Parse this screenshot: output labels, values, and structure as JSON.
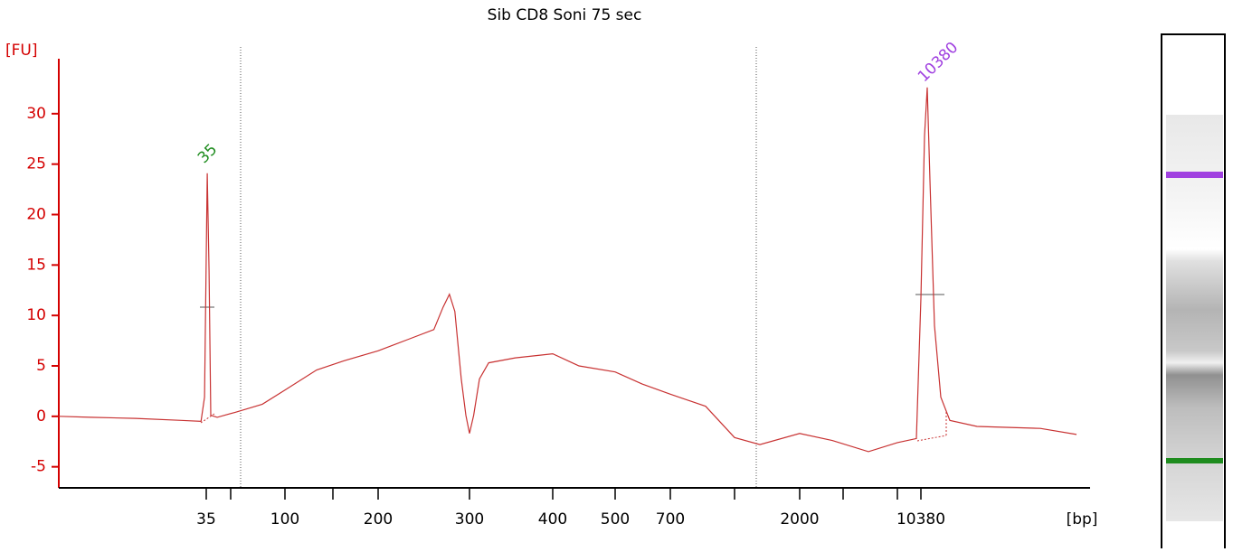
{
  "chart_data": {
    "type": "line",
    "title": "Sib CD8 Soni 75 sec",
    "y_label": "[FU]",
    "x_label": "[bp]",
    "x": [
      1,
      8.3,
      18.7,
      29.2,
      33.8,
      34.6,
      35.6,
      36.7,
      37.8,
      41.7,
      54.2,
      79.2,
      100,
      133,
      162,
      200,
      232,
      261,
      271,
      278,
      284,
      291,
      296,
      300,
      305,
      312,
      323,
      355,
      400,
      442,
      500,
      598,
      700,
      865,
      1000,
      1389,
      2000,
      2750,
      4867,
      7000,
      9730,
      10380,
      10883,
      11260,
      11637,
      12266,
      13146,
      14403,
      18174,
      26973,
      32000
    ],
    "series": [
      {
        "name": "Sib CD8 Soni 75 sec",
        "color": "#c83232",
        "values": [
          0,
          -0.1,
          -0.2,
          -0.4,
          -0.5,
          1.9,
          24.1,
          14.4,
          0.1,
          -0.1,
          0.4,
          1.2,
          2.6,
          4.6,
          5.5,
          6.5,
          7.6,
          8.6,
          10.8,
          12.1,
          10.4,
          3.7,
          0.1,
          -1.7,
          0.1,
          3.7,
          5.3,
          5.8,
          6.2,
          5.0,
          4.4,
          3.2,
          2.2,
          1.0,
          -2.1,
          -2.8,
          -1.7,
          -2.4,
          -3.5,
          -2.6,
          -2.2,
          11.7,
          27.8,
          32.6,
          23.4,
          9.0,
          1.9,
          -0.4,
          -1.0,
          -1.2,
          -1.8
        ]
      }
    ],
    "xlim": [
      1,
      32000
    ],
    "xticks": [
      35,
      {
        "value": 50,
        "label": null
      },
      100,
      {
        "value": 150,
        "label": null
      },
      200,
      300,
      400,
      500,
      700,
      {
        "value": 1000,
        "label": null
      },
      2000,
      {
        "value": 3000,
        "label": null
      },
      {
        "value": 7000,
        "label": null
      },
      10380
    ],
    "ylim": [
      -7,
      35
    ],
    "yticks": [
      -5,
      0,
      5,
      10,
      15,
      20,
      25,
      30
    ],
    "axis_color": "#d40000",
    "peaks": [
      {
        "label": "35",
        "color": "#1e8c1e"
      },
      {
        "label": "10380",
        "color": "#a040e0"
      }
    ]
  }
}
